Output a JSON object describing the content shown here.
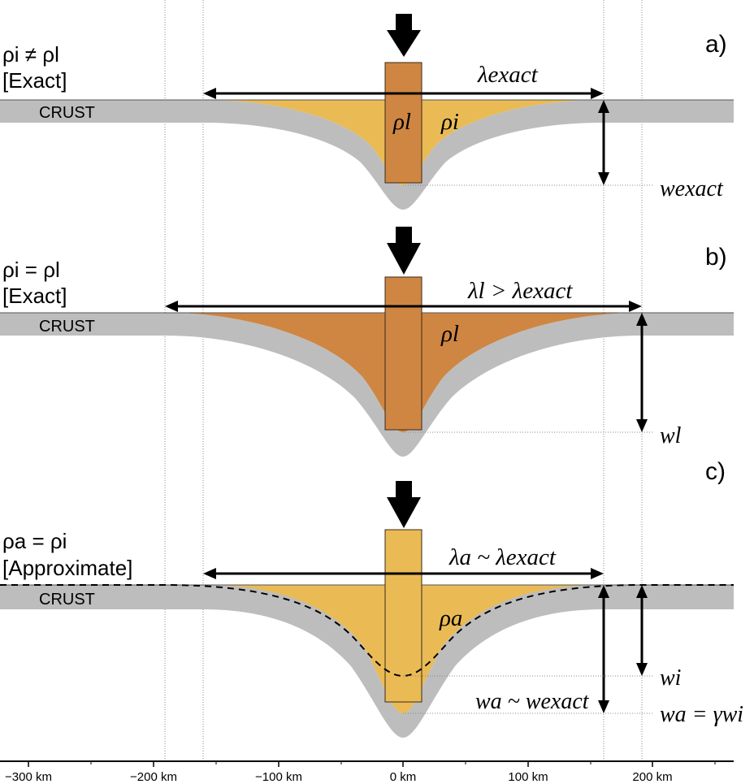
{
  "colors": {
    "crust": "#bdbdbd",
    "ice": "#eabb55",
    "lake": "#cf8642",
    "guide": "#888888"
  },
  "axis": {
    "ticks": [
      "−300 km",
      "−200 km",
      "−100 km",
      "0 km",
      "100 km",
      "200 km"
    ]
  },
  "panel_a": {
    "letter": "a)",
    "cond_line1": "ρi ≠ ρl",
    "cond_line2": "[Exact]",
    "crust": "CRUST",
    "lambda": "λexact",
    "rho_l": "ρl",
    "rho_i": "ρi",
    "w": "wexact"
  },
  "panel_b": {
    "letter": "b)",
    "cond_line1": "ρi = ρl",
    "cond_line2": "[Exact]",
    "crust": "CRUST",
    "lambda": "λl > λexact",
    "rho_l": "ρl",
    "w": "wl"
  },
  "panel_c": {
    "letter": "c)",
    "cond_line1": "ρa = ρi",
    "cond_line2": "[Approximate]",
    "crust": "CRUST",
    "lambda": "λa ~ λexact",
    "rho_a": "ρa",
    "w_i": "wi",
    "w_a_approx": "wa ~ wexact",
    "w_a_gamma": "wa = γwi"
  }
}
